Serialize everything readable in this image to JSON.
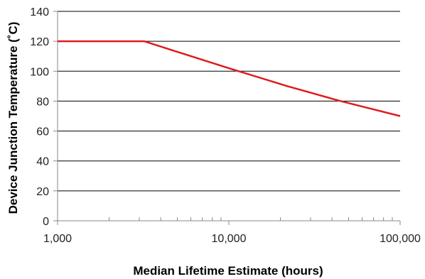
{
  "chart_data": {
    "type": "line",
    "title": "",
    "xlabel": "Median Lifetime Estimate (hours)",
    "ylabel": "Device Junction Temperature (˚C)",
    "xscale": "log",
    "xlim": [
      1000,
      100000
    ],
    "ylim": [
      0,
      140
    ],
    "x_ticks": [
      1000,
      10000,
      100000
    ],
    "x_tick_labels": [
      "1,000",
      "10,000",
      "100,000"
    ],
    "y_ticks": [
      0,
      20,
      40,
      60,
      80,
      100,
      120,
      140
    ],
    "y_tick_labels": [
      "0",
      "20",
      "40",
      "60",
      "80",
      "100",
      "120",
      "140"
    ],
    "grid": "horizontal",
    "legend": "none",
    "series": [
      {
        "color": "#e01b1b",
        "x": [
          1000,
          3200,
          10000,
          22000,
          45000,
          100000
        ],
        "y": [
          120,
          120,
          102,
          90,
          80,
          70
        ]
      }
    ]
  },
  "colors": {
    "line": "#e01b1b",
    "grid": "#000000",
    "axis": "#888888"
  }
}
